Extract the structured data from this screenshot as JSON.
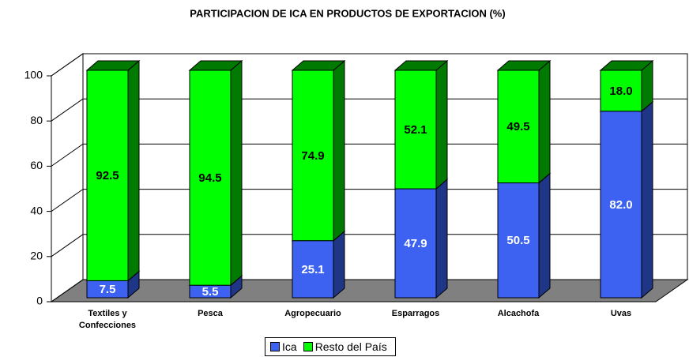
{
  "chart_data": {
    "type": "bar3d_stacked",
    "title": "PARTICIPACION DE ICA EN PRODUCTOS DE EXPORTACION (%)",
    "categories": [
      "Textiles y Confecciones",
      "Pesca",
      "Agropecuario",
      "Esparragos",
      "Alcachofa",
      "Uvas"
    ],
    "series": [
      {
        "name": "Ica",
        "color": "#3d62f2",
        "side_color": "#1f3585",
        "label_color": "#ffffff",
        "values": [
          7.5,
          5.5,
          25.1,
          47.9,
          50.5,
          82
        ],
        "value_labels": [
          "7.5",
          "5.5",
          "25.1",
          "47.9",
          "50.5",
          "82.0"
        ]
      },
      {
        "name": "Resto del País",
        "color": "#00ff00",
        "side_color": "#007a00",
        "label_color": "#000000",
        "values": [
          92.5,
          94.5,
          74.9,
          52.1,
          49.5,
          18
        ],
        "value_labels": [
          "92.5",
          "94.5",
          "74.9",
          "52.1",
          "49.5",
          "18.0"
        ]
      }
    ],
    "ylim": [
      0,
      100
    ],
    "yticks": [
      0,
      20,
      40,
      60,
      80,
      100
    ],
    "grid": true,
    "legend": "bottom"
  }
}
